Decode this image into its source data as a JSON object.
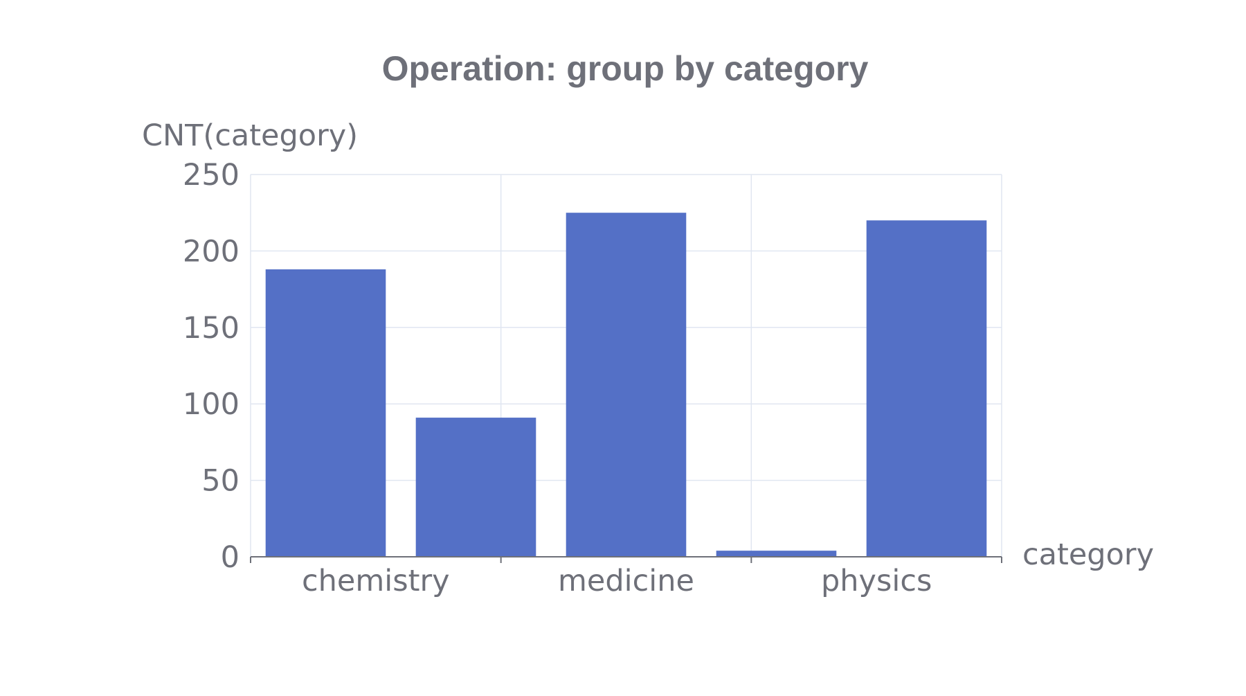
{
  "chart_data": {
    "type": "bar",
    "title": "Operation: group by category",
    "xlabel": "category",
    "ylabel": "CNT(category)",
    "x_tick_labels": [
      "chemistry",
      "medicine",
      "physics"
    ],
    "values": [
      188,
      91,
      225,
      4,
      220
    ],
    "ylim": [
      0,
      250
    ],
    "yticks": [
      0,
      50,
      100,
      150,
      200,
      250
    ],
    "grid": true,
    "bar_color": "#5470c6",
    "text_color": "#6e7079",
    "grid_color": "#e0e6f1"
  }
}
